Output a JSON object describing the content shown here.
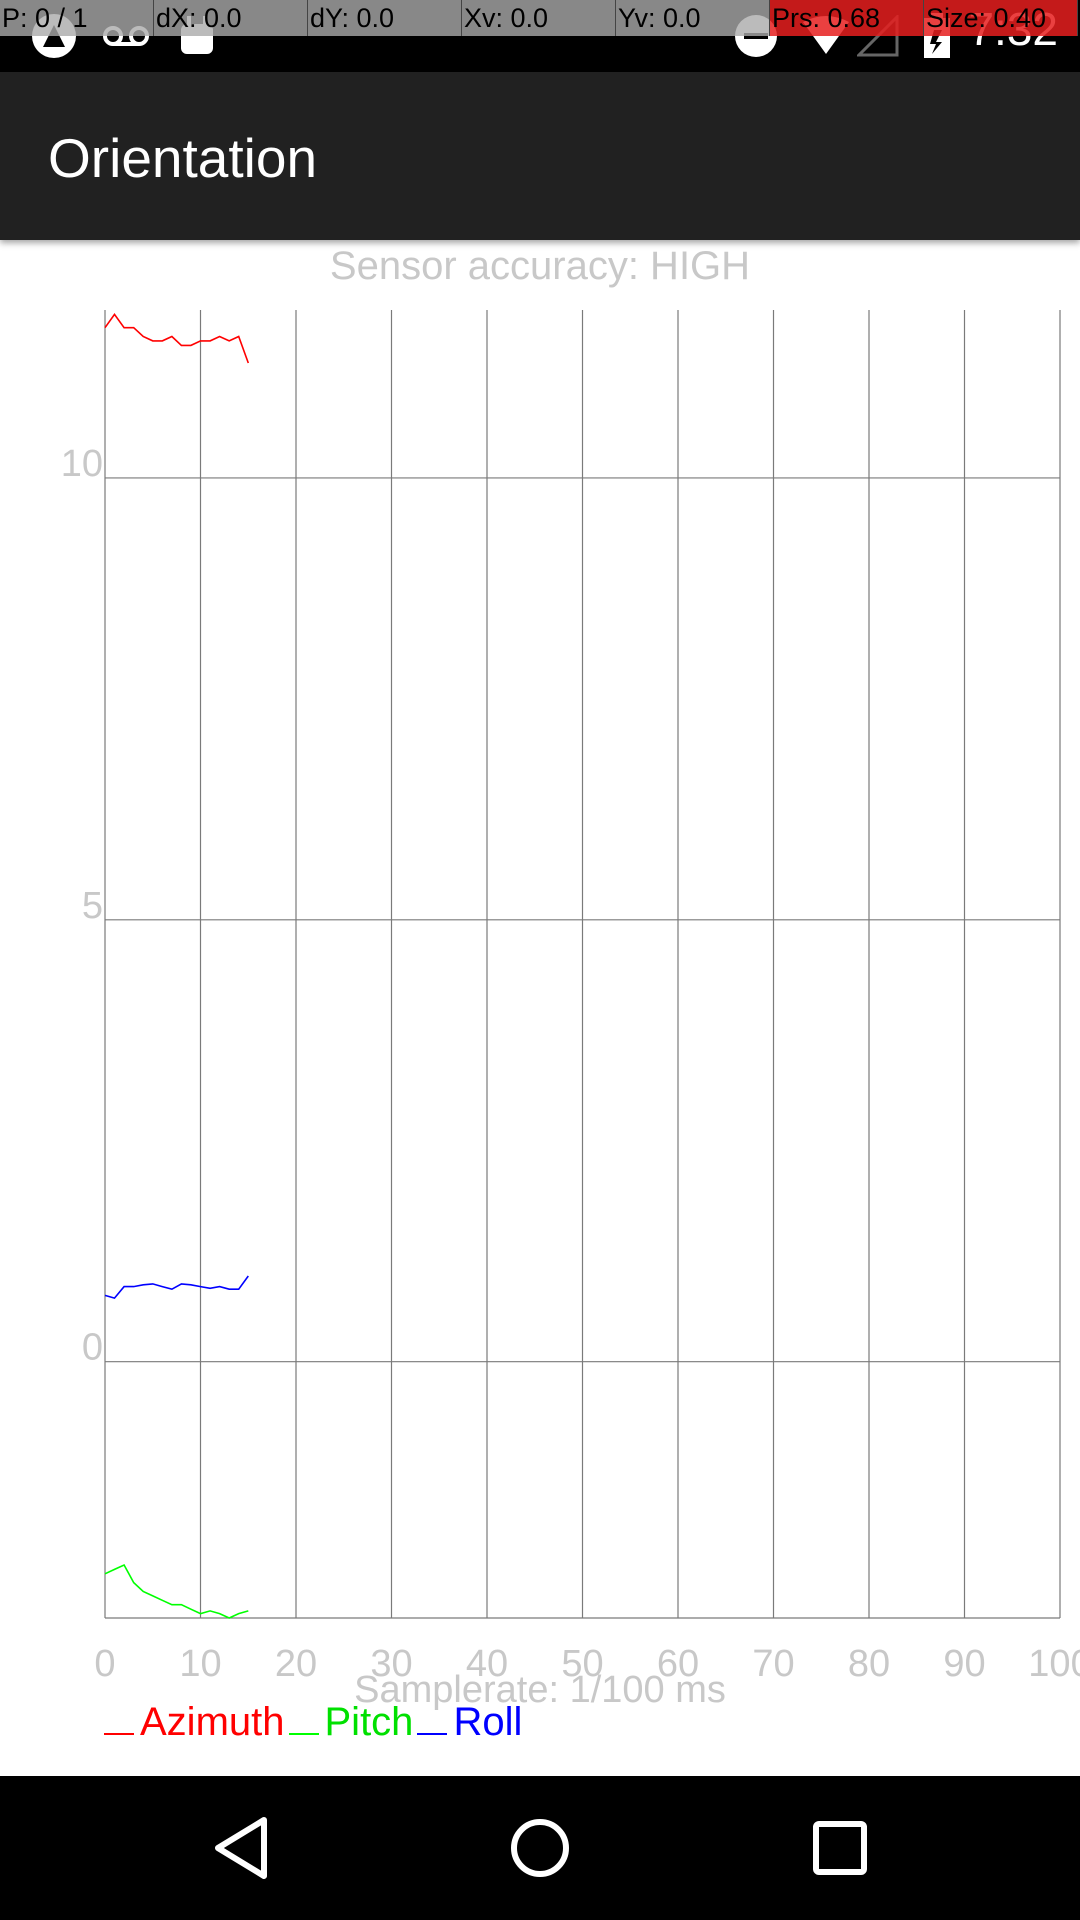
{
  "status_bar": {
    "time": "7:32",
    "icons": [
      "android-debug-icon",
      "voicemail-icon",
      "android-icon",
      "do-not-disturb-icon",
      "wifi-icon",
      "signal-icon",
      "battery-icon"
    ]
  },
  "debug_overlay": {
    "items": [
      "P: 0 / 1",
      "dX: 0.0",
      "dY: 0.0",
      "Xv: 0.0",
      "Yv: 0.0",
      "Prs: 0.68",
      "Size: 0.40"
    ]
  },
  "app_bar": {
    "title": "Orientation"
  },
  "sensor_accuracy": "Sensor accuracy: HIGH",
  "samplerate": "Samplerate: 1/100 ms",
  "chart_data": {
    "type": "line",
    "x_ticks": [
      "0",
      "10",
      "20",
      "30",
      "40",
      "50",
      "60",
      "70",
      "80",
      "90",
      "100"
    ],
    "y_ticks": [
      "10",
      "5",
      "0"
    ],
    "xlim": [
      0,
      100
    ],
    "ylim": [
      -2.9,
      11.9
    ],
    "grid": true,
    "legend_position": "bottom-left",
    "x": [
      0,
      1,
      2,
      3,
      4,
      5,
      6,
      7,
      8,
      9,
      10,
      11,
      12,
      13,
      14,
      15
    ],
    "series": [
      {
        "name": "Azimuth",
        "color": "#ff0000",
        "values": [
          11.7,
          11.85,
          11.7,
          11.7,
          11.6,
          11.55,
          11.55,
          11.6,
          11.5,
          11.5,
          11.55,
          11.55,
          11.6,
          11.55,
          11.6,
          11.3
        ]
      },
      {
        "name": "Pitch",
        "color": "#00ff00",
        "values": [
          -2.4,
          -2.35,
          -2.3,
          -2.5,
          -2.6,
          -2.65,
          -2.7,
          -2.75,
          -2.75,
          -2.8,
          -2.85,
          -2.82,
          -2.85,
          -2.9,
          -2.85,
          -2.82
        ]
      },
      {
        "name": "Roll",
        "color": "#0000ff",
        "values": [
          0.75,
          0.72,
          0.85,
          0.85,
          0.87,
          0.88,
          0.85,
          0.82,
          0.88,
          0.87,
          0.85,
          0.83,
          0.85,
          0.82,
          0.82,
          0.97
        ]
      }
    ]
  },
  "nav_bar": {
    "buttons": [
      "back-icon",
      "home-icon",
      "recents-icon"
    ]
  }
}
